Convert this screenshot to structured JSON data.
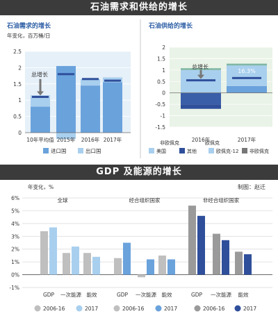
{
  "banner_top": "石油需求和供给的增长",
  "banner_bottom": "GDP 及能源的增长",
  "credit": "制图：赵迁",
  "colors": {
    "light_blue": "#a9cfee",
    "mid_blue": "#6aa2dc",
    "dark_blue": "#2f4f9b",
    "line_blue": "#3b5ea9",
    "gray": "#9a9a9a",
    "light_gray": "#bfbfbf",
    "panel_bg": "#e6f0f8",
    "panel2_bg": "#eaf3e7",
    "cap_teal": "#7fb7a4"
  },
  "chart_data": [
    {
      "type": "bar",
      "title": "石油需求的增长",
      "ylabel": "年变化，百万桶/日",
      "ylim": [
        0,
        2.5
      ],
      "yticks": [
        "0",
        "0.5",
        "1",
        "1.5",
        "2",
        "2.5"
      ],
      "categories": [
        "10年平均值",
        "2015年",
        "2016年",
        "2017年"
      ],
      "series": [
        {
          "name": "进口国",
          "values": [
            0.8,
            2.05,
            1.45,
            1.55
          ]
        },
        {
          "name": "出口国",
          "values": [
            0.35,
            -0.2,
            0.2,
            0.15
          ]
        }
      ],
      "total_marks": [
        1.1,
        1.8,
        1.65,
        1.6
      ],
      "annotation": "总增长"
    },
    {
      "type": "bar",
      "title": "石油供给的增长",
      "ylim": [
        -1.5,
        2
      ],
      "yticks": [
        "-1.5",
        "-1",
        "-0.5",
        "0",
        "0.5",
        "1",
        "1.5",
        "2"
      ],
      "categories": [
        "2016年",
        "2017年"
      ],
      "series": [
        {
          "name": "美国",
          "values": [
            -0.5,
            0.3
          ]
        },
        {
          "name": "其他",
          "values": [
            -0.2,
            0.0
          ]
        },
        {
          "name": "欧佩克-12",
          "values": [
            1.0,
            0.9
          ]
        },
        {
          "name": "非欧佩克",
          "values": [
            0.55,
            0.5
          ]
        }
      ],
      "legend_groups": [
        "非欧佩克",
        "欧佩克"
      ],
      "total_marks": [
        0.55,
        0.65
      ],
      "annotation": "总增长",
      "bar_label": "16.3%"
    },
    {
      "type": "bar",
      "ylabel": "年变化，%",
      "ylim": [
        -1,
        6
      ],
      "yticks": [
        "-1%",
        "0%",
        "1%",
        "2%",
        "3%",
        "4%",
        "5%",
        "6%"
      ],
      "groups": [
        {
          "name": "全球",
          "categories": [
            "GDP",
            "一次能源",
            "能效"
          ],
          "series": [
            {
              "name": "2006-16",
              "values": [
                3.4,
                1.7,
                1.7
              ]
            },
            {
              "name": "2017",
              "values": [
                3.7,
                2.2,
                1.4
              ]
            }
          ]
        },
        {
          "name": "经合组织国家",
          "categories": [
            "GDP",
            "一次能源",
            "能效"
          ],
          "series": [
            {
              "name": "2006-16",
              "values": [
                1.3,
                -0.2,
                1.5
              ]
            },
            {
              "name": "2017",
              "values": [
                2.5,
                1.2,
                1.2
              ]
            }
          ]
        },
        {
          "name": "非经合组织国家",
          "categories": [
            "GDP",
            "一次能源",
            "能效"
          ],
          "series": [
            {
              "name": "2006-16",
              "values": [
                5.4,
                3.2,
                1.8
              ]
            },
            {
              "name": "2017",
              "values": [
                4.6,
                2.7,
                1.6
              ]
            }
          ]
        }
      ],
      "legend": [
        "2006-16",
        "2017",
        "2006-16",
        "2017",
        "2006-16",
        "2017"
      ]
    }
  ]
}
